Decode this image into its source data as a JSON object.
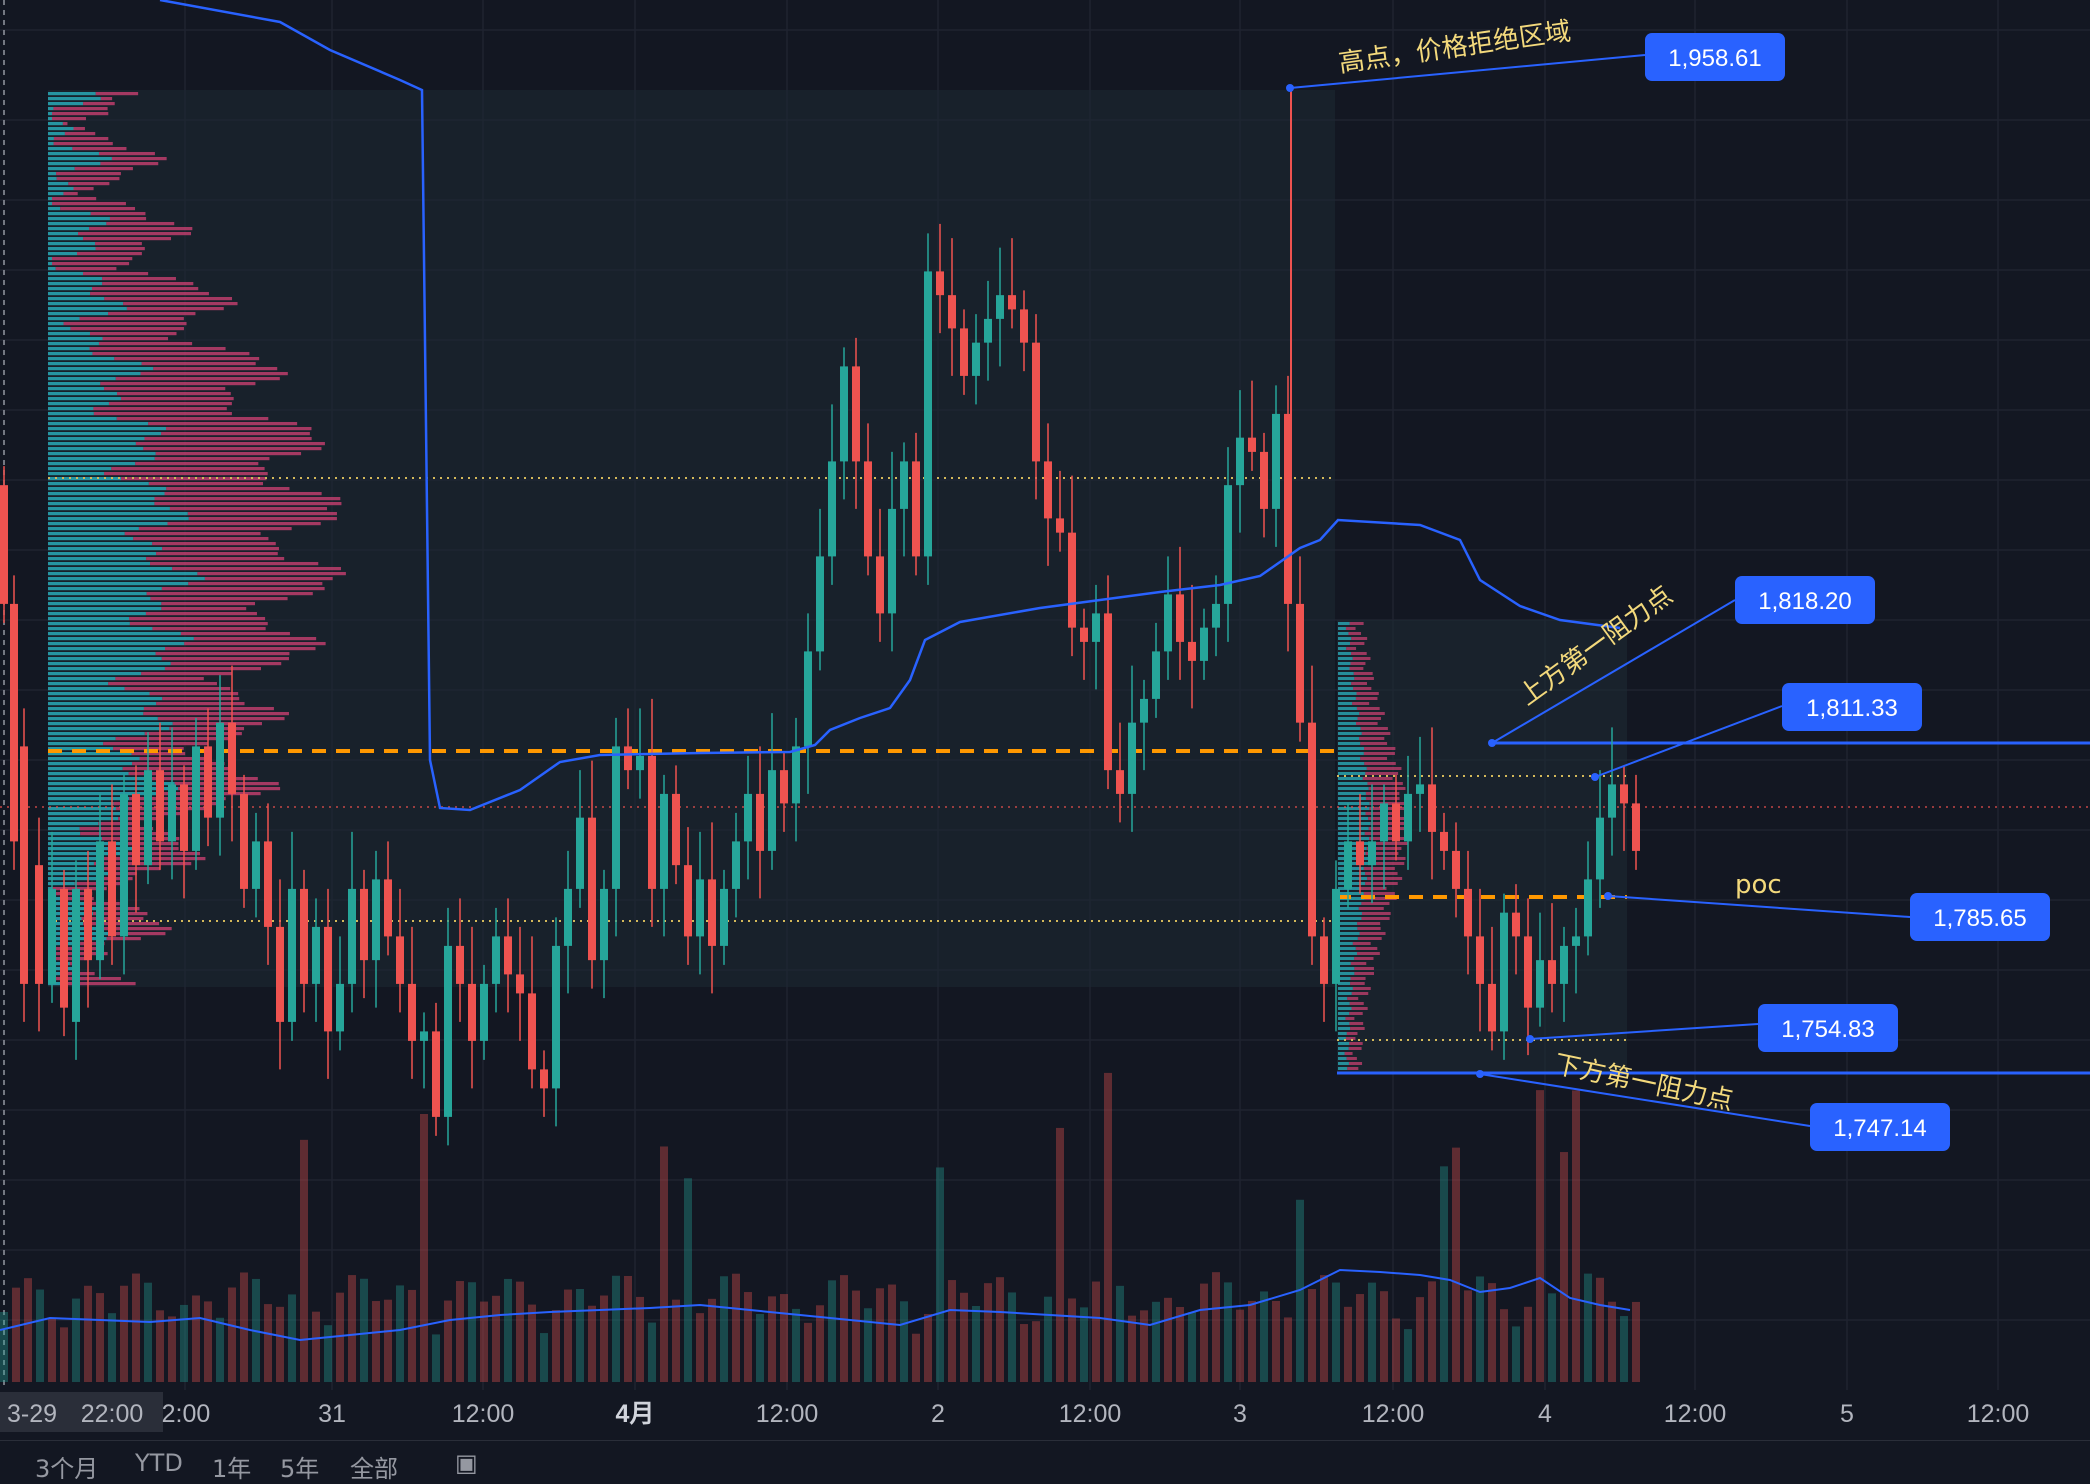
{
  "chart_data": {
    "type": "candlestick",
    "price_labels": [
      {
        "value": "1,958.61",
        "price": 1958.61
      },
      {
        "value": "1,818.20",
        "price": 1818.2
      },
      {
        "value": "1,811.33",
        "price": 1811.33
      },
      {
        "value": "1,785.65",
        "price": 1785.65
      },
      {
        "value": "1,754.83",
        "price": 1754.83
      },
      {
        "value": "1,747.14",
        "price": 1747.14
      }
    ],
    "annotations": {
      "high": "高点，价格拒绝区域",
      "upper_resistance": "上方第一阻力点",
      "poc": "poc",
      "lower_resistance": "下方第一阻力点"
    },
    "x_ticks": [
      "3-29",
      "22:00",
      "2:00",
      "31",
      "12:00",
      "4月",
      "12:00",
      "2",
      "12:00",
      "3",
      "12:00",
      "4",
      "12:00",
      "5",
      "12:00"
    ],
    "bottom_toolbar": [
      "3个月",
      "YTD",
      "1年",
      "5年",
      "全部"
    ],
    "colors": {
      "up": "#26a69a",
      "down": "#ef5350",
      "vwap": "#2962ff",
      "poc": "#ff9800",
      "label_bg": "#2962ff",
      "annotation": "#f3d97c"
    }
  }
}
